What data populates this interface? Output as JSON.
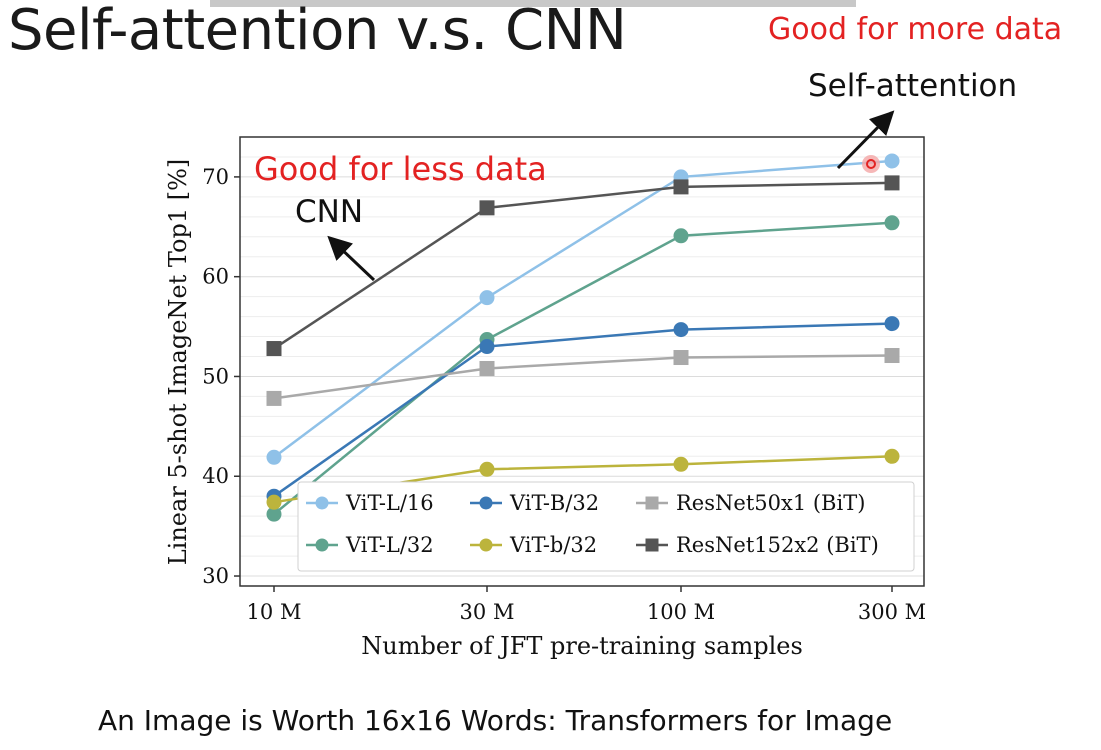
{
  "slide": {
    "title": "Self-attention v.s. CNN",
    "annotation_more": "Good for more data",
    "annotation_less": "Good for less data",
    "label_self_attention": "Self-attention",
    "label_cnn": "CNN",
    "caption": "An Image is Worth 16x16 Words: Transformers for Image"
  },
  "chart_data": {
    "type": "line",
    "xlabel": "Number of JFT pre-training samples",
    "ylabel": "Linear 5-shot ImageNet Top1 [%]",
    "categories": [
      "10 M",
      "30 M",
      "100 M",
      "300 M"
    ],
    "ylim": [
      29,
      74
    ],
    "yticks": [
      30,
      40,
      50,
      60,
      70
    ],
    "grid": true,
    "legend_position": "lower-right",
    "series": [
      {
        "name": "ViT-L/16",
        "color": "#8fc1e8",
        "marker": "circle",
        "values": [
          41.9,
          57.9,
          70.0,
          71.6
        ]
      },
      {
        "name": "ViT-L/32",
        "color": "#5fa38e",
        "marker": "circle",
        "values": [
          36.2,
          53.7,
          64.1,
          65.4
        ]
      },
      {
        "name": "ViT-B/32",
        "color": "#3a78b5",
        "marker": "circle",
        "values": [
          38.0,
          53.0,
          54.7,
          55.3
        ]
      },
      {
        "name": "ViT-b/32",
        "color": "#bcb43c",
        "marker": "circle",
        "values": [
          37.4,
          40.7,
          41.2,
          42.0
        ]
      },
      {
        "name": "ResNet50x1 (BiT)",
        "color": "#a9a9a9",
        "marker": "square",
        "values": [
          47.8,
          50.8,
          51.9,
          52.1
        ]
      },
      {
        "name": "ResNet152x2 (BiT)",
        "color": "#555555",
        "marker": "square",
        "values": [
          52.8,
          66.9,
          69.0,
          69.4
        ]
      }
    ]
  }
}
